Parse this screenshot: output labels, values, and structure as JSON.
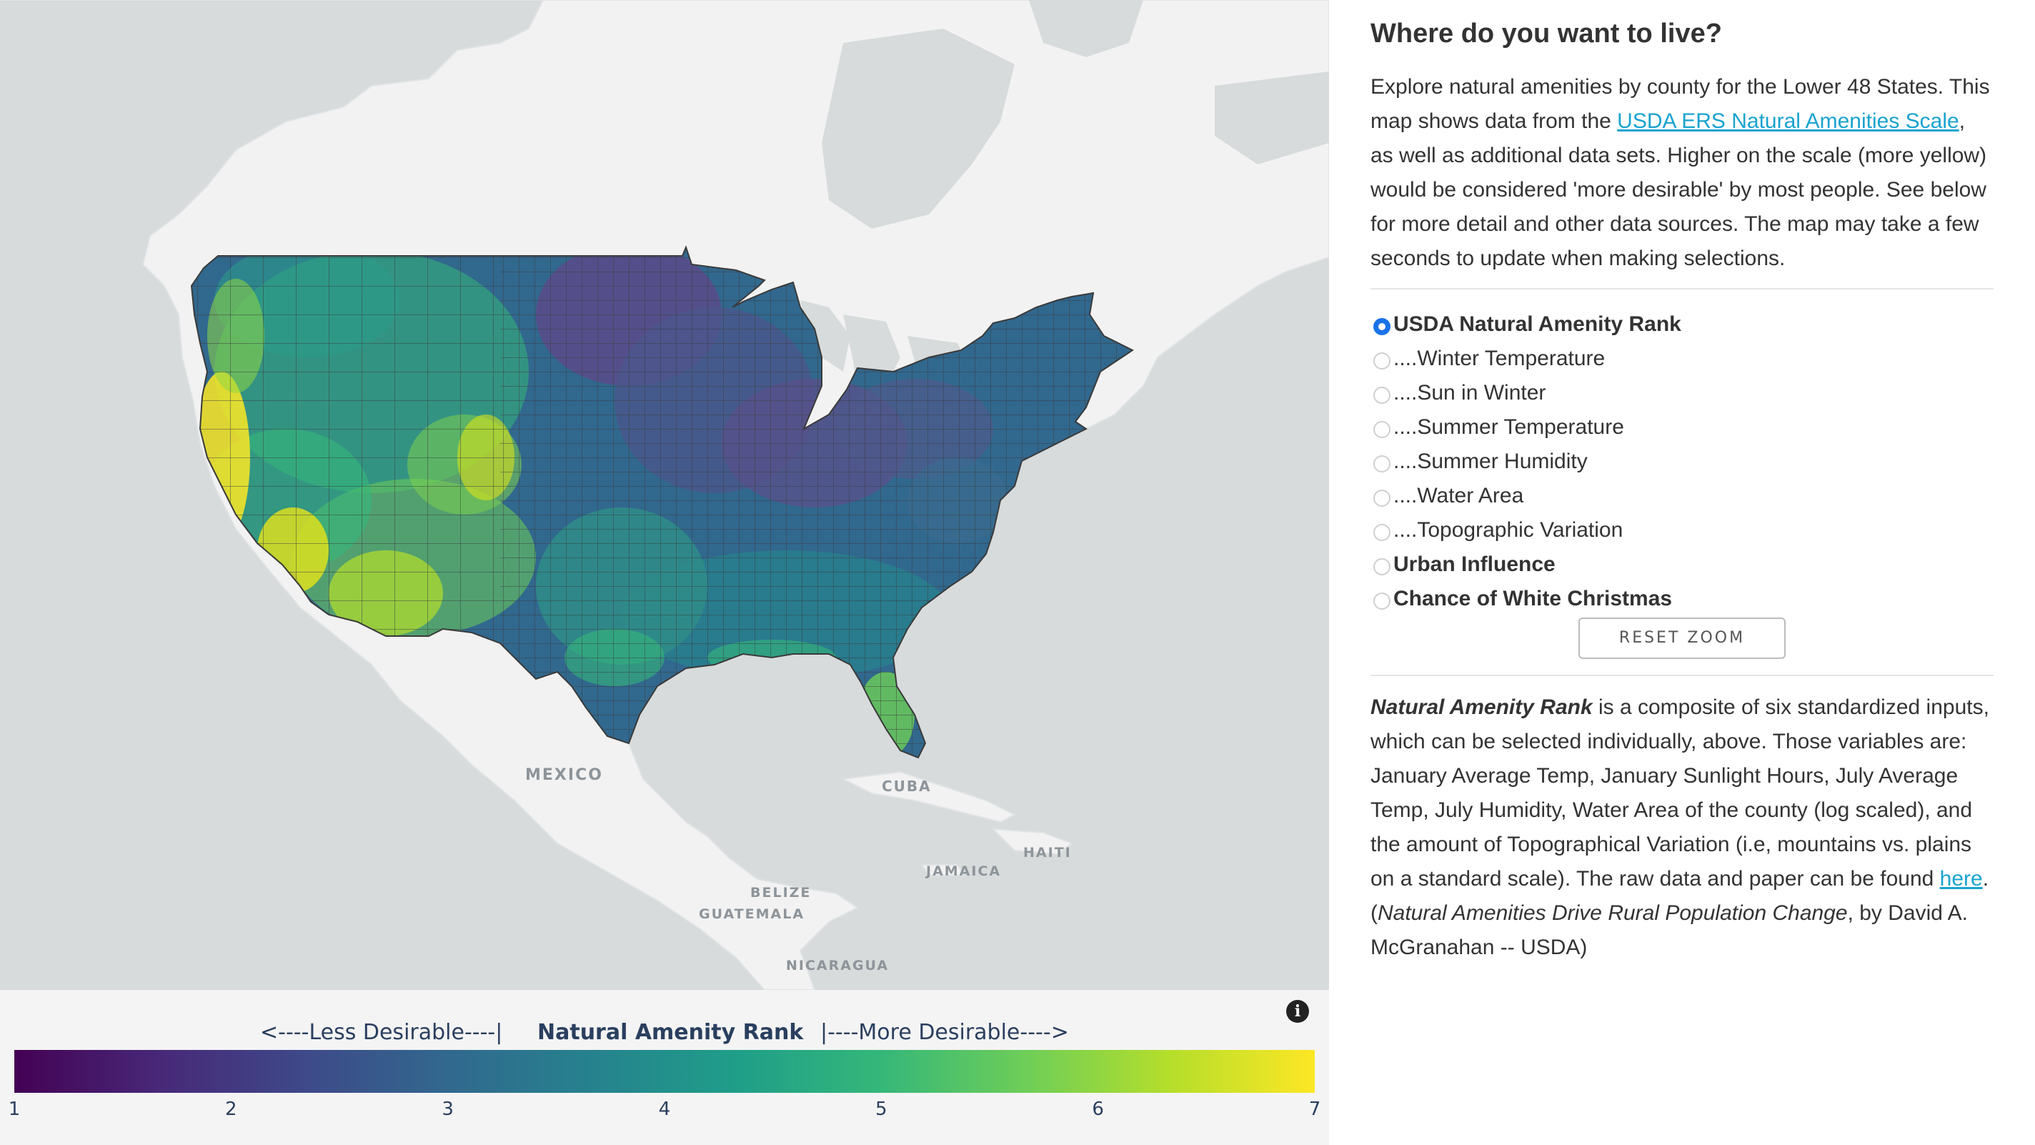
{
  "page": {
    "title": "Where do you want to live?"
  },
  "intro": {
    "text_before_link": "Explore natural amenities by county for the Lower 48 States. This map shows data from the ",
    "link_text": "USDA ERS Natural Amenities Scale",
    "text_after_link": ", as well as additional data sets. Higher on the scale (more yellow) would be considered 'more desirable' by most people. See below for more detail and other data sources. The map may take a few seconds to update when making selections."
  },
  "layers": [
    {
      "label": "USDA Natural Amenity Rank",
      "bold": true,
      "selected": true
    },
    {
      "label": "....Winter Temperature",
      "bold": false,
      "selected": false
    },
    {
      "label": "....Sun in Winter",
      "bold": false,
      "selected": false
    },
    {
      "label": "....Summer Temperature",
      "bold": false,
      "selected": false
    },
    {
      "label": "....Summer Humidity",
      "bold": false,
      "selected": false
    },
    {
      "label": "....Water Area",
      "bold": false,
      "selected": false
    },
    {
      "label": "....Topographic Variation",
      "bold": false,
      "selected": false
    },
    {
      "label": "Urban Influence",
      "bold": true,
      "selected": false
    },
    {
      "label": "Chance of White Christmas",
      "bold": true,
      "selected": false
    }
  ],
  "reset_zoom_label": "RESET ZOOM",
  "description": {
    "term": "Natural Amenity Rank",
    "text1": " is a composite of six standardized inputs, which can be selected individually, above. Those variables are: January Average Temp, January Sunlight Hours, July Average Temp, July Humidity, Water Area of the county (log scaled), and the amount of Topographical Variation (i.e, mountains vs. plains on a standard scale). The raw data and paper can be found ",
    "link_text": "here",
    "text2": ". (",
    "paper_title": "Natural Amenities Drive Rural Population Change",
    "text3": ", by David A. McGranahan -- USDA)"
  },
  "map": {
    "place_labels": [
      "MEXICO",
      "CUBA",
      "JAMAICA",
      "HAITI",
      "BELIZE",
      "GUATEMALA",
      "NICARAGUA"
    ],
    "colors": {
      "water": "#d7dbdc",
      "land": "#f2f2f2",
      "county_border": "#3a3a3a"
    }
  },
  "legend": {
    "less_label": "<----Less Desirable----|",
    "title": "Natural Amenity Rank",
    "more_label": "|----More Desirable---->",
    "ticks": [
      "1",
      "2",
      "3",
      "4",
      "5",
      "6",
      "7"
    ],
    "range": [
      1,
      7
    ],
    "colorscale": "viridis",
    "info_icon": "info-icon"
  }
}
